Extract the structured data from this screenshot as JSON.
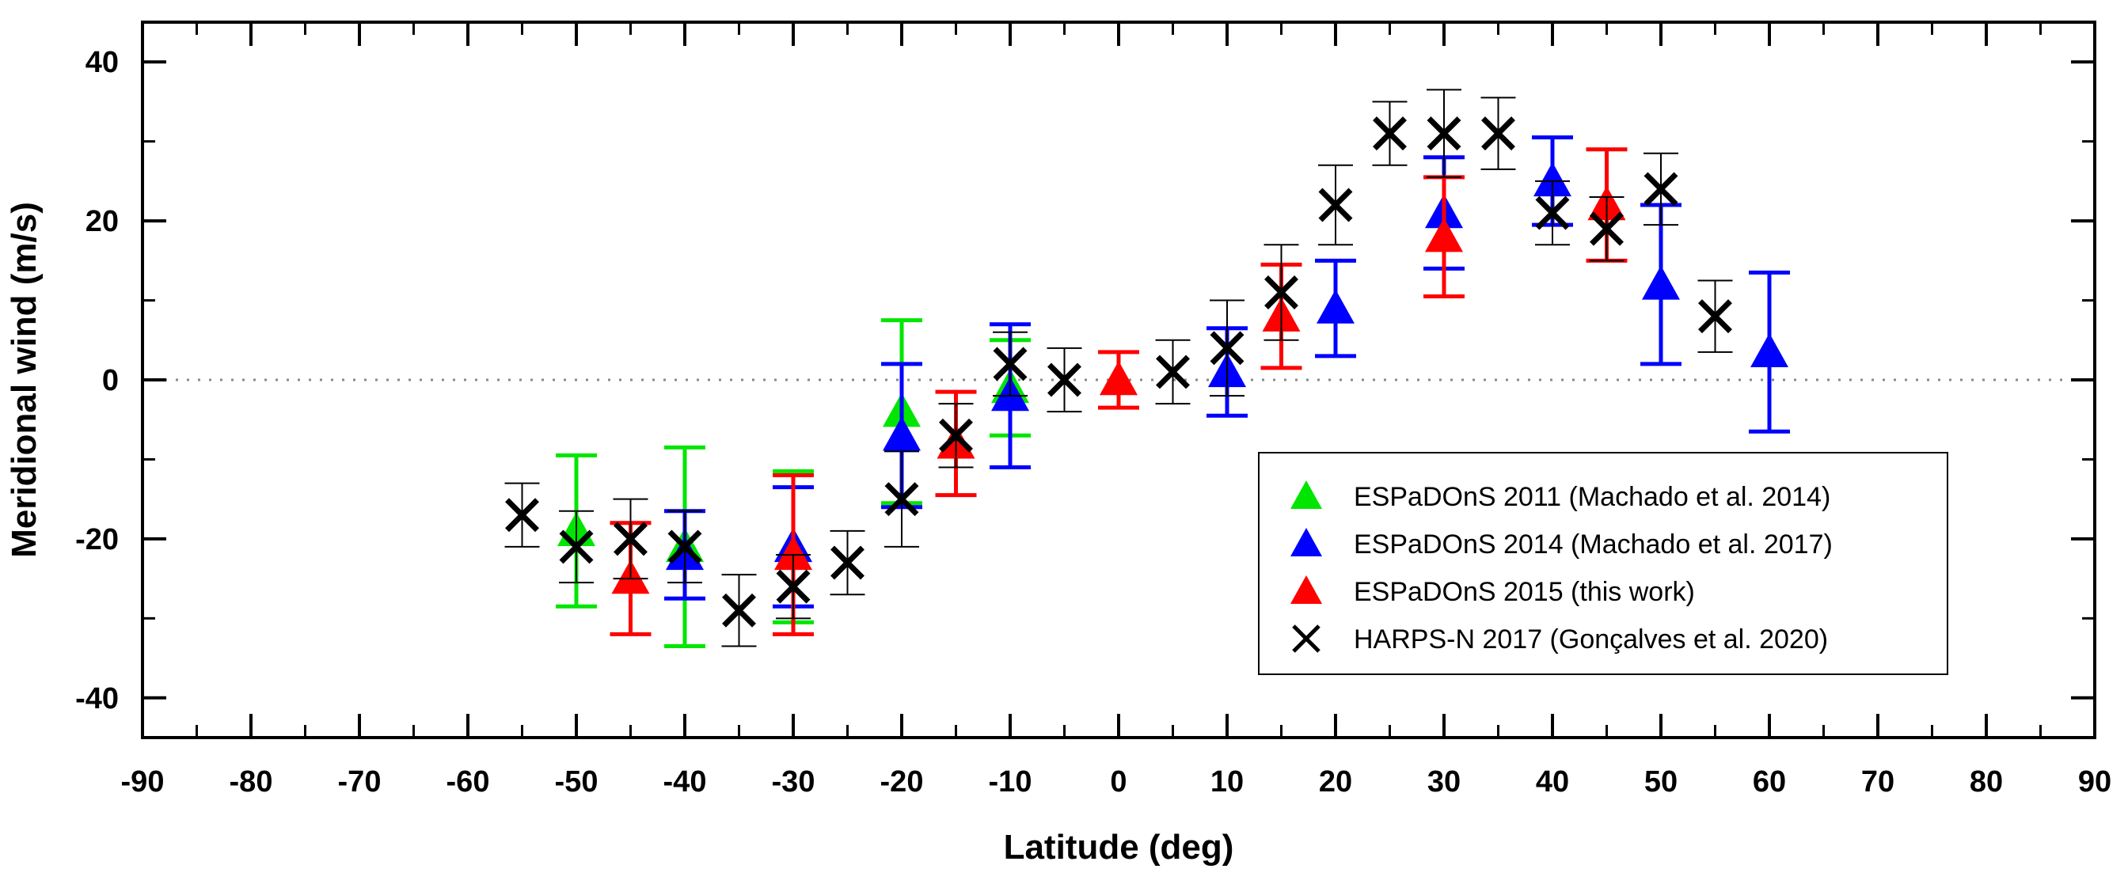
{
  "chart_data": {
    "type": "scatter",
    "xlabel": "Latitude (deg)",
    "ylabel": "Meridional wind (m/s)",
    "xlim": [
      -90,
      90
    ],
    "ylim": [
      -45,
      45
    ],
    "x_ticks": [
      -90,
      -80,
      -70,
      -60,
      -50,
      -40,
      -30,
      -20,
      -10,
      0,
      10,
      20,
      30,
      40,
      50,
      60,
      70,
      80,
      90
    ],
    "y_ticks": [
      -40,
      -20,
      0,
      20,
      40
    ],
    "zero_line": "dotted",
    "legend_position": "lower-right",
    "series": [
      {
        "name": "ESPaDOnS 2011 (Machado et al. 2014)",
        "color": "#00e600",
        "marker": "triangle",
        "points": [
          {
            "x": -50,
            "y": -19,
            "err": 9.5
          },
          {
            "x": -40,
            "y": -21,
            "err": 12.5
          },
          {
            "x": -30,
            "y": -21,
            "err": 9.5
          },
          {
            "x": -20,
            "y": -4,
            "err": 11.5
          },
          {
            "x": -10,
            "y": -1,
            "err": 6
          }
        ]
      },
      {
        "name": "ESPaDOnS 2014 (Machado et al. 2017)",
        "color": "#0000ff",
        "marker": "triangle",
        "points": [
          {
            "x": -40,
            "y": -22,
            "err": 5.5
          },
          {
            "x": -30,
            "y": -21,
            "err": 7.5
          },
          {
            "x": -20,
            "y": -7,
            "err": 9
          },
          {
            "x": -10,
            "y": -2,
            "err": 9
          },
          {
            "x": 10,
            "y": 1,
            "err": 5.5
          },
          {
            "x": 20,
            "y": 9,
            "err": 6
          },
          {
            "x": 30,
            "y": 21,
            "err": 7
          },
          {
            "x": 40,
            "y": 25,
            "err": 5.5
          },
          {
            "x": 50,
            "y": 12,
            "err": 10
          },
          {
            "x": 60,
            "y": 3.5,
            "err": 10
          }
        ]
      },
      {
        "name": "ESPaDOnS 2015 (this work)",
        "color": "#ff0000",
        "marker": "triangle",
        "points": [
          {
            "x": -45,
            "y": -25,
            "err": 7
          },
          {
            "x": -30,
            "y": -22,
            "err": 10
          },
          {
            "x": -15,
            "y": -8,
            "err": 6.5
          },
          {
            "x": 0,
            "y": 0,
            "err": 3.5
          },
          {
            "x": 15,
            "y": 8,
            "err": 6.5
          },
          {
            "x": 30,
            "y": 18,
            "err": 7.5
          },
          {
            "x": 45,
            "y": 22,
            "err": 7
          }
        ]
      },
      {
        "name": "HARPS-N 2017 (Gonçalves et al. 2020)",
        "color": "#000000",
        "marker": "cross",
        "points": [
          {
            "x": -55,
            "y": -17,
            "err": 4
          },
          {
            "x": -50,
            "y": -21,
            "err": 4.5
          },
          {
            "x": -45,
            "y": -20,
            "err": 5
          },
          {
            "x": -40,
            "y": -21,
            "err": 4.5
          },
          {
            "x": -35,
            "y": -29,
            "err": 4.5
          },
          {
            "x": -30,
            "y": -26,
            "err": 4
          },
          {
            "x": -25,
            "y": -23,
            "err": 4
          },
          {
            "x": -20,
            "y": -15,
            "err": 6
          },
          {
            "x": -15,
            "y": -7,
            "err": 4
          },
          {
            "x": -10,
            "y": 2,
            "err": 4
          },
          {
            "x": -5,
            "y": 0,
            "err": 4
          },
          {
            "x": 5,
            "y": 1,
            "err": 4
          },
          {
            "x": 10,
            "y": 4,
            "err": 6
          },
          {
            "x": 15,
            "y": 11,
            "err": 6
          },
          {
            "x": 20,
            "y": 22,
            "err": 5
          },
          {
            "x": 25,
            "y": 31,
            "err": 4
          },
          {
            "x": 30,
            "y": 31,
            "err": 5.5
          },
          {
            "x": 35,
            "y": 31,
            "err": 4.5
          },
          {
            "x": 40,
            "y": 21,
            "err": 4
          },
          {
            "x": 45,
            "y": 19,
            "err": 4
          },
          {
            "x": 50,
            "y": 24,
            "err": 4.5
          },
          {
            "x": 55,
            "y": 8,
            "err": 4.5
          }
        ]
      }
    ]
  }
}
